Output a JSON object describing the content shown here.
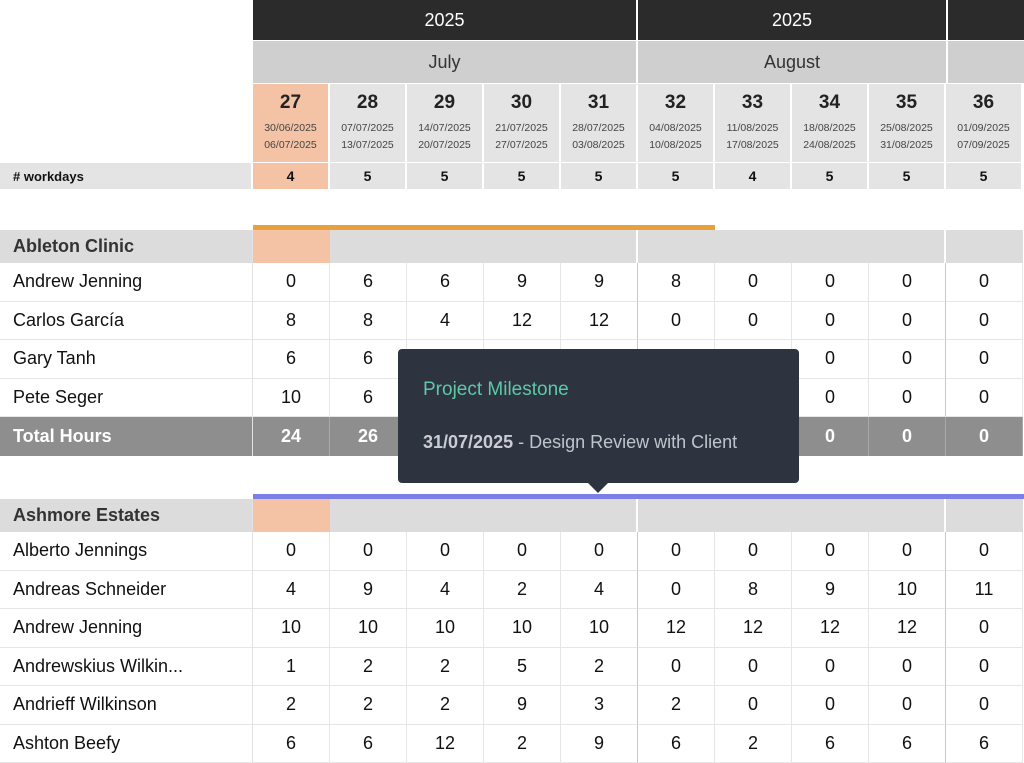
{
  "years": [
    "2025",
    "2025"
  ],
  "months": [
    "July",
    "August"
  ],
  "weeks": [
    {
      "num": "27",
      "from": "30/06/2025",
      "to": "06/07/2025",
      "workdays": "4"
    },
    {
      "num": "28",
      "from": "07/07/2025",
      "to": "13/07/2025",
      "workdays": "5"
    },
    {
      "num": "29",
      "from": "14/07/2025",
      "to": "20/07/2025",
      "workdays": "5"
    },
    {
      "num": "30",
      "from": "21/07/2025",
      "to": "27/07/2025",
      "workdays": "5"
    },
    {
      "num": "31",
      "from": "28/07/2025",
      "to": "03/08/2025",
      "workdays": "5"
    },
    {
      "num": "32",
      "from": "04/08/2025",
      "to": "10/08/2025",
      "workdays": "5"
    },
    {
      "num": "33",
      "from": "11/08/2025",
      "to": "17/08/2025",
      "workdays": "4"
    },
    {
      "num": "34",
      "from": "18/08/2025",
      "to": "24/08/2025",
      "workdays": "5"
    },
    {
      "num": "35",
      "from": "25/08/2025",
      "to": "31/08/2025",
      "workdays": "5"
    },
    {
      "num": "36",
      "from": "01/09/2025",
      "to": "07/09/2025",
      "workdays": "5"
    }
  ],
  "workdays_label": "# workdays",
  "colors": {
    "current_week": "#f4c3a5",
    "bar_ableton": "#e8a03c",
    "bar_ashmore": "#7b7fe6",
    "milestone_flag": "#3a9a3a",
    "tooltip_title": "#5cc9a7"
  },
  "projects": [
    {
      "name": "Ableton Clinic",
      "rows": [
        {
          "name": "Andrew Jenning",
          "hours": [
            "0",
            "6",
            "6",
            "9",
            "9",
            "8",
            "0",
            "0",
            "0",
            "0"
          ]
        },
        {
          "name": "Carlos García",
          "hours": [
            "8",
            "8",
            "4",
            "12",
            "12",
            "0",
            "0",
            "0",
            "0",
            "0"
          ]
        },
        {
          "name": "Gary Tanh",
          "hours": [
            "6",
            "6",
            "",
            "",
            "",
            "",
            "",
            "0",
            "0",
            "0"
          ]
        },
        {
          "name": "Pete Seger",
          "hours": [
            "10",
            "6",
            "",
            "",
            "",
            "",
            "",
            "0",
            "0",
            "0"
          ]
        }
      ],
      "total_label": "Total Hours",
      "totals": [
        "24",
        "26",
        "",
        "",
        "",
        "",
        "",
        "0",
        "0",
        "0"
      ]
    },
    {
      "name": "Ashmore Estates",
      "rows": [
        {
          "name": "Alberto Jennings",
          "hours": [
            "0",
            "0",
            "0",
            "0",
            "0",
            "0",
            "0",
            "0",
            "0",
            "0"
          ]
        },
        {
          "name": "Andreas Schneider",
          "hours": [
            "4",
            "9",
            "4",
            "2",
            "4",
            "0",
            "8",
            "9",
            "10",
            "11"
          ]
        },
        {
          "name": "Andrew Jenning",
          "hours": [
            "10",
            "10",
            "10",
            "10",
            "10",
            "12",
            "12",
            "12",
            "12",
            "0"
          ]
        },
        {
          "name": "Andrewskius Wilkin...",
          "hours": [
            "1",
            "2",
            "2",
            "5",
            "2",
            "0",
            "0",
            "0",
            "0",
            "0"
          ]
        },
        {
          "name": "Andrieff Wilkinson",
          "hours": [
            "2",
            "2",
            "2",
            "9",
            "3",
            "2",
            "0",
            "0",
            "0",
            "0"
          ]
        },
        {
          "name": "Ashton Beefy",
          "hours": [
            "6",
            "6",
            "12",
            "2",
            "9",
            "6",
            "2",
            "6",
            "6",
            "6"
          ]
        }
      ]
    }
  ],
  "tooltip": {
    "title": "Project Milestone",
    "date": "31/07/2025",
    "separator": " - ",
    "description": "Design Review with Client"
  }
}
